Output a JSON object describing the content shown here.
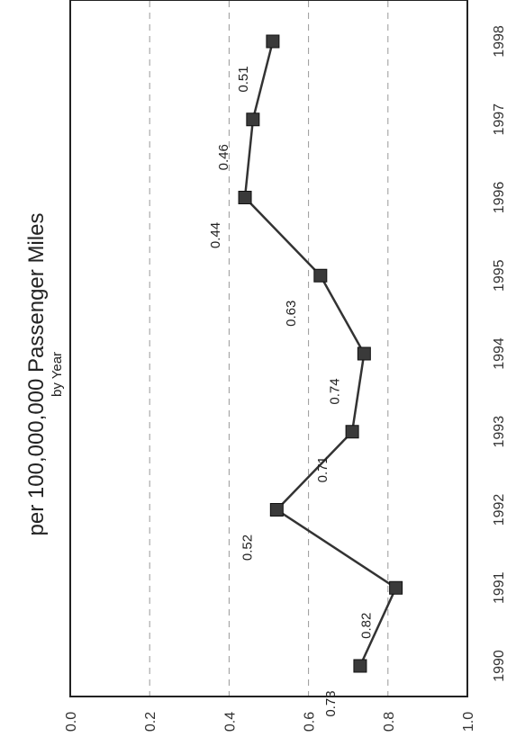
{
  "chart_data": {
    "type": "line",
    "title": "per 100,000,000 Passenger Miles",
    "subtitle": "by Year",
    "xlabel": "",
    "ylabel": "",
    "categories": [
      "1990",
      "1991",
      "1992",
      "1993",
      "1994",
      "1995",
      "1996",
      "1997",
      "1998"
    ],
    "series": [
      {
        "values": [
          0.73,
          0.82,
          0.52,
          0.71,
          0.74,
          0.63,
          0.44,
          0.46,
          0.51
        ],
        "data_labels": [
          "0.73",
          "0.82",
          "0.52",
          "0.71",
          "0.74",
          "0.63",
          "0.44",
          "0.46",
          "0.51"
        ]
      }
    ],
    "y_ticks": [
      "0.0",
      "0.2",
      "0.4",
      "0.6",
      "0.8",
      "1.0"
    ],
    "ylim": [
      0,
      1.0
    ],
    "grid": true,
    "orientation": "rotated-90-clockwise",
    "colors": {
      "line": "#333333",
      "marker": "#3a3a3a",
      "grid": "#999999",
      "frame": "#222222"
    }
  }
}
